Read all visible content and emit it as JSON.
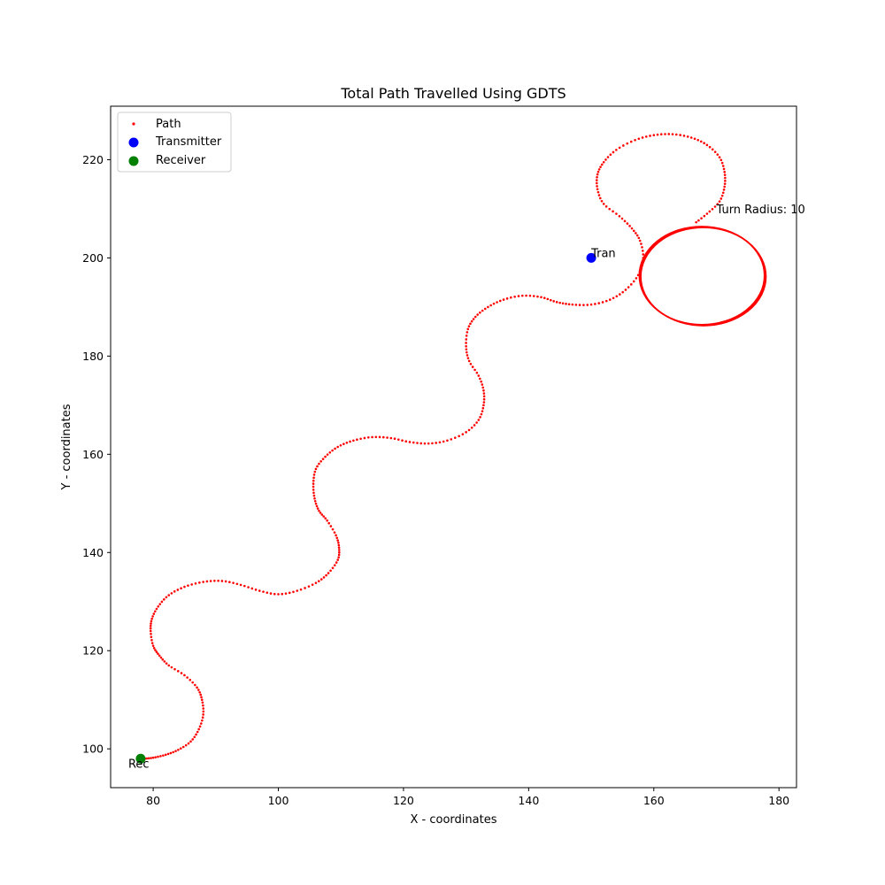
{
  "chart_data": {
    "type": "scatter",
    "title": "Total Path Travelled Using GDTS",
    "xlabel": "X - coordinates",
    "ylabel": "Y - coordinates",
    "xlim": [
      73.2,
      182.8
    ],
    "ylim": [
      92.1,
      230.9
    ],
    "xticks": [
      80,
      100,
      120,
      140,
      160,
      180
    ],
    "yticks": [
      100,
      120,
      140,
      160,
      180,
      200,
      220
    ],
    "grid": false,
    "legend_position": "upper left",
    "legend": [
      {
        "label": "Path",
        "color": "#ff0000",
        "marker": "small-dot"
      },
      {
        "label": "Transmitter",
        "color": "#0000ff",
        "marker": "circle"
      },
      {
        "label": "Receiver",
        "color": "#008000",
        "marker": "circle"
      }
    ],
    "series": [
      {
        "name": "Path",
        "color": "#ff0000",
        "points": [
          [
            78.5,
            98.0
          ],
          [
            80.0,
            98.2
          ],
          [
            82.0,
            98.8
          ],
          [
            84.0,
            99.8
          ],
          [
            86.0,
            101.5
          ],
          [
            87.3,
            104.0
          ],
          [
            88.0,
            107.0
          ],
          [
            87.8,
            110.0
          ],
          [
            87.0,
            112.5
          ],
          [
            85.0,
            115.0
          ],
          [
            82.5,
            117.0
          ],
          [
            81.0,
            119.0
          ],
          [
            80.0,
            121.0
          ],
          [
            79.6,
            124.0
          ],
          [
            79.8,
            126.5
          ],
          [
            80.8,
            129.0
          ],
          [
            82.5,
            131.3
          ],
          [
            85.0,
            133.0
          ],
          [
            88.0,
            134.0
          ],
          [
            91.0,
            134.2
          ],
          [
            94.0,
            133.4
          ],
          [
            97.0,
            132.2
          ],
          [
            100.0,
            131.5
          ],
          [
            103.0,
            132.2
          ],
          [
            106.0,
            133.8
          ],
          [
            108.0,
            135.8
          ],
          [
            109.5,
            138.5
          ],
          [
            109.7,
            141.0
          ],
          [
            109.2,
            143.5
          ],
          [
            107.8,
            146.5
          ],
          [
            106.5,
            148.5
          ],
          [
            105.8,
            151.0
          ],
          [
            105.6,
            154.0
          ],
          [
            106.0,
            157.0
          ],
          [
            107.5,
            159.5
          ],
          [
            109.5,
            161.5
          ],
          [
            112.0,
            162.8
          ],
          [
            115.0,
            163.5
          ],
          [
            118.0,
            163.3
          ],
          [
            121.0,
            162.5
          ],
          [
            124.0,
            162.2
          ],
          [
            127.0,
            162.8
          ],
          [
            130.0,
            164.5
          ],
          [
            132.0,
            167.0
          ],
          [
            132.8,
            170.0
          ],
          [
            132.8,
            173.0
          ],
          [
            132.0,
            176.0
          ],
          [
            130.5,
            179.0
          ],
          [
            130.0,
            182.0
          ],
          [
            130.3,
            185.5
          ],
          [
            131.5,
            188.0
          ],
          [
            133.5,
            190.0
          ],
          [
            136.0,
            191.5
          ],
          [
            139.0,
            192.3
          ],
          [
            142.0,
            192.0
          ],
          [
            144.5,
            191.0
          ],
          [
            147.0,
            190.5
          ],
          [
            150.0,
            190.5
          ],
          [
            153.0,
            191.5
          ],
          [
            155.5,
            193.5
          ],
          [
            157.5,
            196.5
          ],
          [
            158.3,
            200.0
          ],
          [
            157.8,
            203.5
          ],
          [
            156.5,
            206.0
          ],
          [
            154.5,
            208.5
          ],
          [
            152.0,
            211.0
          ],
          [
            151.0,
            214.0
          ],
          [
            151.0,
            217.0
          ],
          [
            152.0,
            219.5
          ],
          [
            154.0,
            222.0
          ],
          [
            157.0,
            224.0
          ],
          [
            160.0,
            225.0
          ],
          [
            163.0,
            225.2
          ],
          [
            166.0,
            224.5
          ],
          [
            168.5,
            223.0
          ],
          [
            170.5,
            220.5
          ],
          [
            171.3,
            217.5
          ],
          [
            171.3,
            214.5
          ],
          [
            170.5,
            211.5
          ],
          [
            168.5,
            209.0
          ],
          [
            166.5,
            207.0
          ]
        ]
      }
    ],
    "loop": {
      "center": [
        167.8,
        196.3
      ],
      "radius_x": 10,
      "radius_y": 10,
      "label": "Turn Radius: 10",
      "label_at": [
        170,
        210
      ]
    },
    "transmitter": {
      "x": 150,
      "y": 200,
      "label": "Tran"
    },
    "receiver": {
      "x": 78,
      "y": 98,
      "label": "Rec"
    }
  }
}
